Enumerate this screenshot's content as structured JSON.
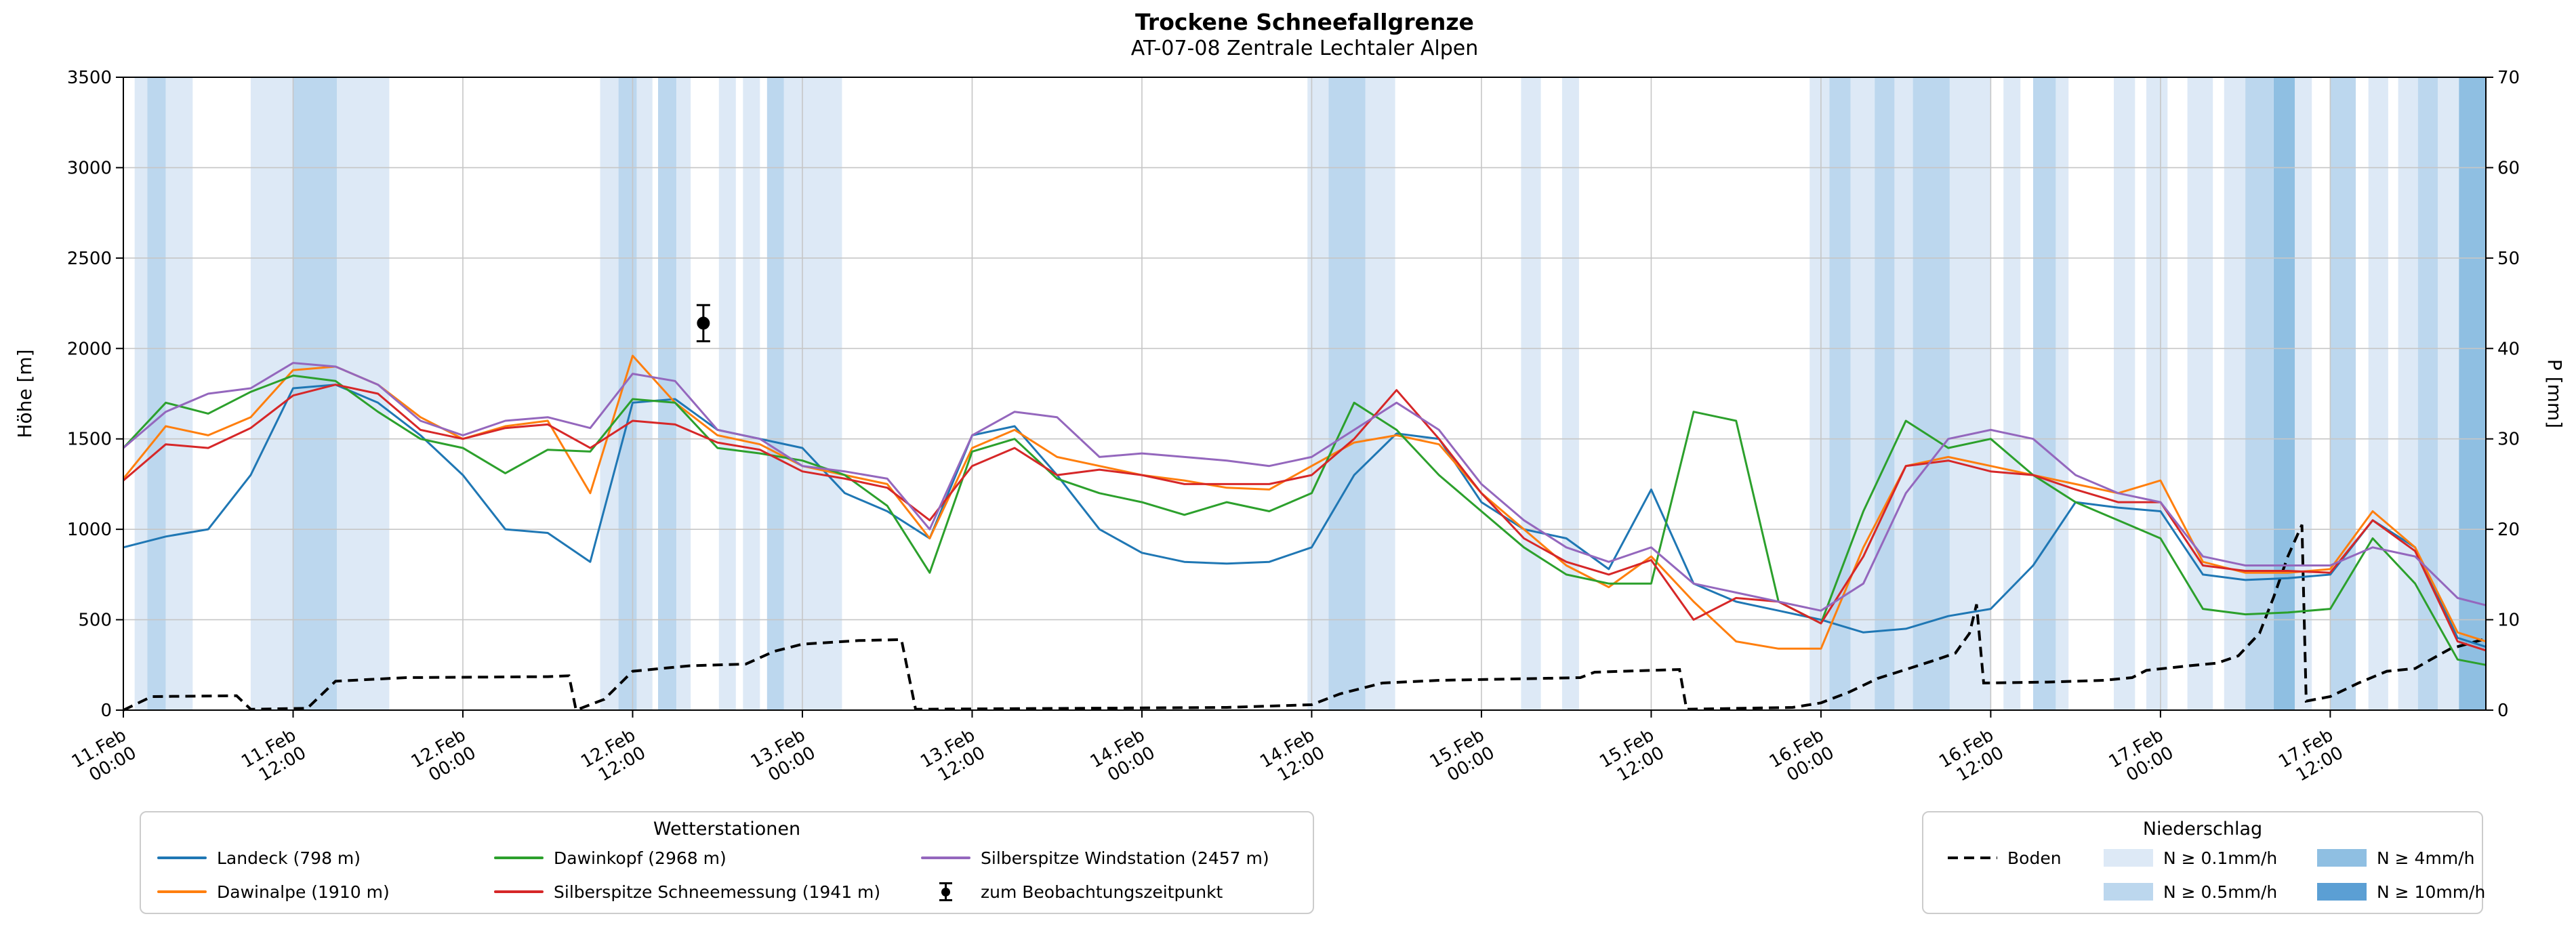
{
  "header": {
    "title": "Trockene Schneefallgrenze",
    "subtitle": "AT-07-08 Zentrale Lechtaler Alpen"
  },
  "axes": {
    "ylabel_left": "Höhe [m]",
    "ylabel_right": "P [mm]",
    "y_left_ticks": [
      0,
      500,
      1000,
      1500,
      2000,
      2500,
      3000,
      3500
    ],
    "y_right_ticks": [
      0,
      10,
      20,
      30,
      40,
      50,
      60,
      70
    ],
    "x_ticks": [
      {
        "h": 0,
        "date": "11.Feb",
        "time": "00:00"
      },
      {
        "h": 12,
        "date": "11.Feb",
        "time": "12:00"
      },
      {
        "h": 24,
        "date": "12.Feb",
        "time": "00:00"
      },
      {
        "h": 36,
        "date": "12.Feb",
        "time": "12:00"
      },
      {
        "h": 48,
        "date": "13.Feb",
        "time": "00:00"
      },
      {
        "h": 60,
        "date": "13.Feb",
        "time": "12:00"
      },
      {
        "h": 72,
        "date": "14.Feb",
        "time": "00:00"
      },
      {
        "h": 84,
        "date": "14.Feb",
        "time": "12:00"
      },
      {
        "h": 96,
        "date": "15.Feb",
        "time": "00:00"
      },
      {
        "h": 108,
        "date": "15.Feb",
        "time": "12:00"
      },
      {
        "h": 120,
        "date": "16.Feb",
        "time": "00:00"
      },
      {
        "h": 132,
        "date": "16.Feb",
        "time": "12:00"
      },
      {
        "h": 144,
        "date": "17.Feb",
        "time": "00:00"
      },
      {
        "h": 156,
        "date": "17.Feb",
        "time": "12:00"
      }
    ]
  },
  "chart_data": {
    "type": "line",
    "title": "Trockene Schneefallgrenze",
    "subtitle": "AT-07-08 Zentrale Lechtaler Alpen",
    "xlabel": "",
    "ylabel_left": "Höhe [m]",
    "ylabel_right": "P [mm]",
    "x_unit": "hours since 11.Feb 00:00",
    "x_range": [
      0,
      167
    ],
    "ylim_left": [
      0,
      3500
    ],
    "ylim_right": [
      0,
      70
    ],
    "grid": true,
    "hours": [
      0,
      3,
      6,
      9,
      12,
      15,
      18,
      21,
      24,
      27,
      30,
      33,
      36,
      39,
      42,
      45,
      48,
      51,
      54,
      57,
      60,
      63,
      66,
      69,
      72,
      75,
      78,
      81,
      84,
      87,
      90,
      93,
      96,
      99,
      102,
      105,
      108,
      111,
      114,
      117,
      120,
      123,
      126,
      129,
      132,
      135,
      138,
      141,
      144,
      147,
      150,
      153,
      156,
      159,
      162,
      165,
      167
    ],
    "series": [
      {
        "name": "Landeck (798 m)",
        "color": "#1f77b4",
        "axis": "left",
        "values": [
          900,
          960,
          1000,
          1300,
          1780,
          1800,
          1700,
          1520,
          1300,
          1000,
          980,
          820,
          1700,
          1720,
          1550,
          1500,
          1450,
          1200,
          1100,
          950,
          1520,
          1570,
          1300,
          1000,
          870,
          820,
          810,
          820,
          900,
          1300,
          1530,
          1500,
          1150,
          1000,
          950,
          780,
          1220,
          700,
          600,
          550,
          500,
          430,
          450,
          520,
          560,
          800,
          1150,
          1120,
          1100,
          750,
          720,
          730,
          750,
          1050,
          900,
          400,
          350
        ]
      },
      {
        "name": "Dawinalpe (1910 m)",
        "color": "#ff7f0e",
        "axis": "left",
        "values": [
          1280,
          1570,
          1520,
          1620,
          1880,
          1900,
          1800,
          1620,
          1500,
          1570,
          1600,
          1200,
          1960,
          1700,
          1520,
          1470,
          1350,
          1300,
          1250,
          950,
          1450,
          1550,
          1400,
          1350,
          1300,
          1270,
          1230,
          1220,
          1350,
          1480,
          1520,
          1470,
          1200,
          1000,
          800,
          680,
          850,
          600,
          380,
          340,
          340,
          900,
          1350,
          1400,
          1350,
          1300,
          1250,
          1200,
          1270,
          820,
          760,
          760,
          780,
          1100,
          900,
          430,
          380
        ]
      },
      {
        "name": "Dawinkopf (2968 m)",
        "color": "#2ca02c",
        "axis": "left",
        "values": [
          1450,
          1700,
          1640,
          1760,
          1850,
          1820,
          1650,
          1500,
          1450,
          1310,
          1440,
          1430,
          1720,
          1700,
          1450,
          1420,
          1380,
          1300,
          1130,
          760,
          1430,
          1500,
          1280,
          1200,
          1150,
          1080,
          1150,
          1100,
          1200,
          1700,
          1550,
          1300,
          1100,
          900,
          750,
          700,
          700,
          1650,
          1600,
          600,
          480,
          1100,
          1600,
          1450,
          1500,
          1300,
          1150,
          1050,
          950,
          560,
          530,
          540,
          560,
          950,
          700,
          280,
          250
        ]
      },
      {
        "name": "Silberspitze Schneemessung (1941 m)",
        "color": "#d62728",
        "axis": "left",
        "values": [
          1270,
          1470,
          1450,
          1560,
          1740,
          1800,
          1750,
          1550,
          1500,
          1560,
          1580,
          1450,
          1600,
          1580,
          1480,
          1440,
          1320,
          1280,
          1230,
          1050,
          1350,
          1450,
          1300,
          1330,
          1300,
          1250,
          1250,
          1250,
          1300,
          1500,
          1770,
          1500,
          1200,
          950,
          820,
          750,
          830,
          500,
          620,
          600,
          480,
          850,
          1350,
          1380,
          1320,
          1300,
          1220,
          1150,
          1150,
          800,
          770,
          770,
          760,
          1050,
          880,
          380,
          330
        ]
      },
      {
        "name": "Silberspitze Windstation (2457 m)",
        "color": "#9467bd",
        "axis": "left",
        "values": [
          1450,
          1650,
          1750,
          1780,
          1920,
          1900,
          1800,
          1600,
          1520,
          1600,
          1620,
          1560,
          1860,
          1820,
          1550,
          1500,
          1350,
          1320,
          1280,
          1000,
          1520,
          1650,
          1620,
          1400,
          1420,
          1400,
          1380,
          1350,
          1400,
          1550,
          1700,
          1550,
          1250,
          1050,
          900,
          820,
          900,
          700,
          650,
          600,
          550,
          700,
          1200,
          1500,
          1550,
          1500,
          1300,
          1200,
          1150,
          850,
          800,
          800,
          800,
          900,
          850,
          620,
          580
        ]
      }
    ],
    "boden": {
      "name": "Boden",
      "color": "#000000",
      "style": "dashed",
      "axis": "right",
      "points": [
        [
          0,
          0
        ],
        [
          2,
          1.5
        ],
        [
          8,
          1.6
        ],
        [
          9,
          0.1
        ],
        [
          13,
          0.2
        ],
        [
          15,
          3.2
        ],
        [
          20,
          3.6
        ],
        [
          30,
          3.7
        ],
        [
          31.5,
          3.8
        ],
        [
          32,
          0
        ],
        [
          34,
          1.2
        ],
        [
          36,
          4.3
        ],
        [
          40,
          4.9
        ],
        [
          44,
          5.1
        ],
        [
          46,
          6.5
        ],
        [
          48,
          7.3
        ],
        [
          52,
          7.7
        ],
        [
          55,
          7.8
        ],
        [
          56,
          0.1
        ],
        [
          78,
          0.3
        ],
        [
          84,
          0.6
        ],
        [
          86,
          1.8
        ],
        [
          89,
          3.0
        ],
        [
          93,
          3.3
        ],
        [
          100,
          3.5
        ],
        [
          103,
          3.6
        ],
        [
          104,
          4.2
        ],
        [
          110,
          4.5
        ],
        [
          110.5,
          0.1
        ],
        [
          118,
          0.3
        ],
        [
          120,
          0.8
        ],
        [
          122,
          2.0
        ],
        [
          124,
          3.5
        ],
        [
          126,
          4.5
        ],
        [
          128,
          5.5
        ],
        [
          129.5,
          6.3
        ],
        [
          130.5,
          8.5
        ],
        [
          131,
          11.7
        ],
        [
          131.5,
          3.0
        ],
        [
          136,
          3.1
        ],
        [
          140,
          3.3
        ],
        [
          142,
          3.6
        ],
        [
          143,
          4.4
        ],
        [
          146,
          4.9
        ],
        [
          148,
          5.2
        ],
        [
          149.5,
          6.0
        ],
        [
          151,
          8.5
        ],
        [
          152,
          12.5
        ],
        [
          153,
          17.0
        ],
        [
          154,
          20.5
        ],
        [
          154.3,
          1.0
        ],
        [
          156,
          1.5
        ],
        [
          158,
          3.0
        ],
        [
          160,
          4.3
        ],
        [
          162,
          4.6
        ],
        [
          163,
          5.5
        ],
        [
          164.5,
          6.8
        ],
        [
          167,
          7.9
        ]
      ]
    },
    "observation": {
      "label": "zum Beobachtungszeitpunkt",
      "h": 41,
      "value": 2140,
      "yerr": 100,
      "color": "#000000"
    },
    "precip_bands": {
      "classes": [
        {
          "label": "N ≥ 0.1mm/h",
          "color": "#dde9f6"
        },
        {
          "label": "N ≥ 0.5mm/h",
          "color": "#bcd7ee"
        },
        {
          "label": "N ≥ 4mm/h",
          "color": "#8fbfe2"
        },
        {
          "label": "N ≥ 10mm/h",
          "color": "#5b9fd4"
        }
      ],
      "bands": [
        [
          0.8,
          1.7,
          1
        ],
        [
          1.7,
          3.0,
          2
        ],
        [
          3.0,
          4.9,
          1
        ],
        [
          9.0,
          12.0,
          1
        ],
        [
          12.0,
          15.1,
          2
        ],
        [
          15.1,
          18.8,
          1
        ],
        [
          33.7,
          35.0,
          1
        ],
        [
          35.0,
          36.3,
          2
        ],
        [
          36.3,
          37.4,
          1
        ],
        [
          37.8,
          39.1,
          2
        ],
        [
          39.1,
          40.1,
          1
        ],
        [
          42.1,
          43.3,
          1
        ],
        [
          43.8,
          45.0,
          1
        ],
        [
          45.5,
          46.7,
          2
        ],
        [
          46.7,
          50.8,
          1
        ],
        [
          83.7,
          85.2,
          1
        ],
        [
          85.2,
          87.8,
          2
        ],
        [
          87.8,
          89.9,
          1
        ],
        [
          98.8,
          100.2,
          1
        ],
        [
          101.7,
          102.9,
          1
        ],
        [
          119.2,
          120.6,
          1
        ],
        [
          120.6,
          122.1,
          2
        ],
        [
          122.1,
          123.8,
          1
        ],
        [
          123.8,
          125.2,
          2
        ],
        [
          125.2,
          126.5,
          1
        ],
        [
          126.5,
          129.1,
          2
        ],
        [
          129.1,
          132.0,
          1
        ],
        [
          132.9,
          134.1,
          1
        ],
        [
          135.0,
          136.6,
          2
        ],
        [
          136.6,
          137.5,
          1
        ],
        [
          140.7,
          142.2,
          1
        ],
        [
          143.0,
          144.5,
          1
        ],
        [
          145.9,
          147.7,
          1
        ],
        [
          148.5,
          150.0,
          1
        ],
        [
          150.0,
          152.0,
          2
        ],
        [
          152.0,
          153.5,
          3
        ],
        [
          153.5,
          154.7,
          1
        ],
        [
          156.0,
          157.8,
          2
        ],
        [
          158.7,
          160.1,
          1
        ],
        [
          160.8,
          162.2,
          1
        ],
        [
          162.2,
          163.6,
          2
        ],
        [
          163.6,
          165.1,
          1
        ],
        [
          165.1,
          167.0,
          3
        ]
      ]
    }
  },
  "legend_stations": {
    "title": "Wetterstationen"
  },
  "legend_precip": {
    "title": "Niederschlag"
  }
}
